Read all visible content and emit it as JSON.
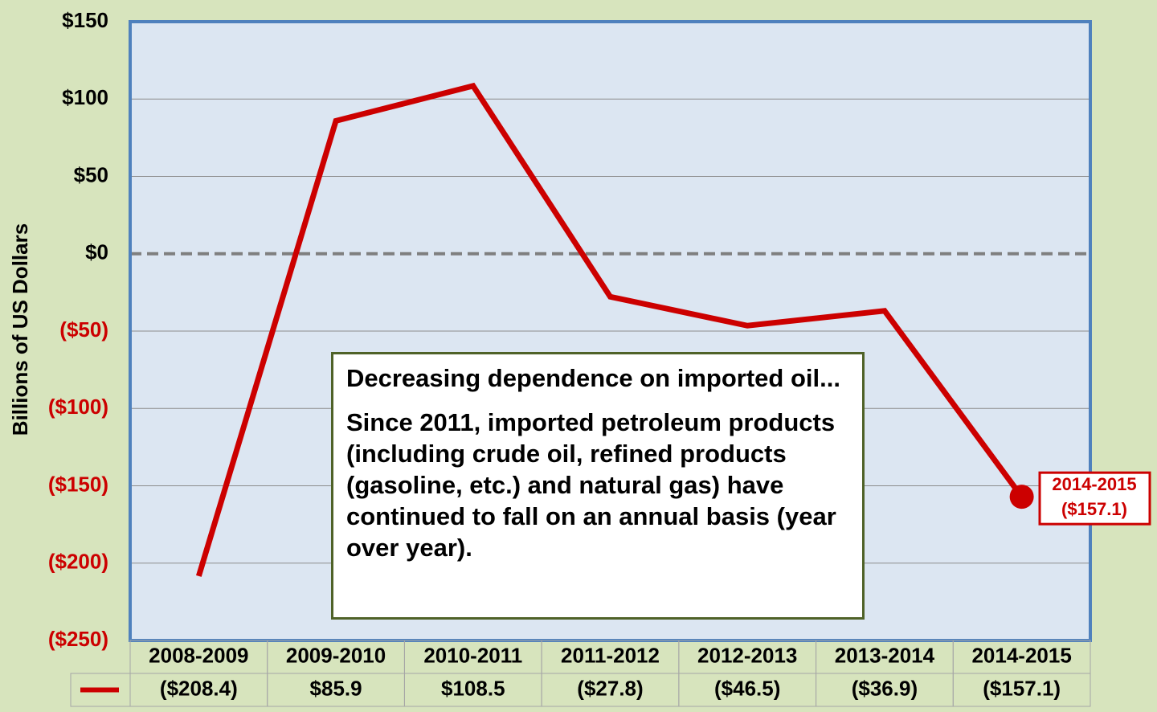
{
  "chart_data": {
    "type": "line",
    "y_label": "Billions of US Dollars",
    "categories": [
      "2008-2009",
      "2009-2010",
      "2010-2011",
      "2011-2012",
      "2012-2013",
      "2013-2014",
      "2014-2015"
    ],
    "values": [
      -208.4,
      85.9,
      108.5,
      -27.8,
      -46.5,
      -36.9,
      -157.1
    ],
    "value_labels": [
      "($208.4)",
      "$85.9",
      "$108.5",
      "($27.8)",
      "($46.5)",
      "($36.9)",
      "($157.1)"
    ],
    "color": "#cc0000",
    "ylim": [
      -250,
      150
    ],
    "yticks": [
      {
        "value": -250,
        "label": "($250)"
      },
      {
        "value": -200,
        "label": "($200)"
      },
      {
        "value": -150,
        "label": "($150)"
      },
      {
        "value": -100,
        "label": "($100)"
      },
      {
        "value": -50,
        "label": "($50)"
      },
      {
        "value": 0,
        "label": "$0"
      },
      {
        "value": 50,
        "label": "$50"
      },
      {
        "value": 100,
        "label": "$100"
      },
      {
        "value": 150,
        "label": "$150"
      }
    ],
    "grid": true,
    "annotation": {
      "heading": "Decreasing dependence on imported oil...",
      "text": "Since 2011, imported petroleum products (including crude oil, refined products (gasoline, etc.) and natural gas) have continued to fall on an annual basis (year over year)."
    }
  }
}
